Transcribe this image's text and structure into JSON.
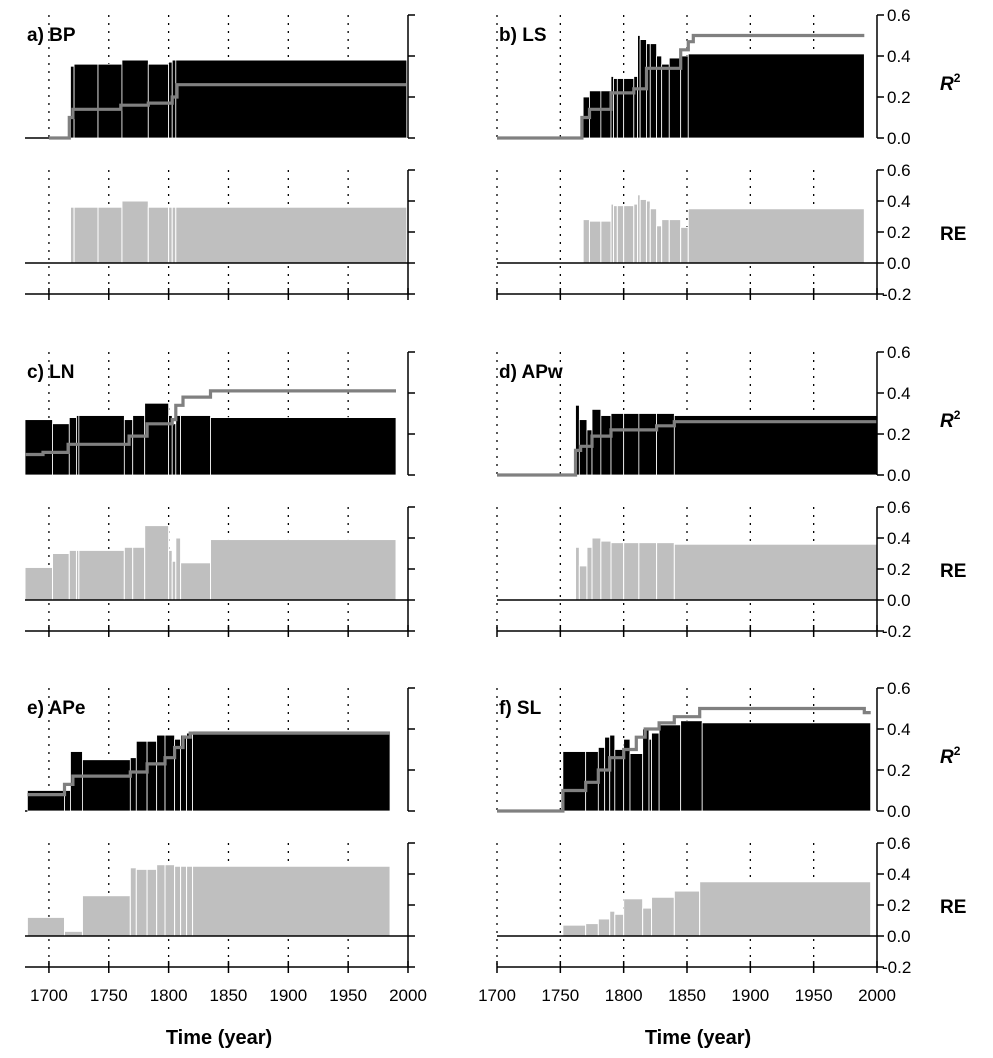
{
  "colors": {
    "r2_bar": "#000000",
    "r2_line": "#808080",
    "re_bar": "#bfbfbf",
    "axis": "#000000"
  },
  "chart_data": {
    "type": "bar",
    "x_ticks": [
      1700,
      1750,
      1800,
      1850,
      1900,
      1950,
      2000
    ],
    "xlim": [
      1680,
      2000
    ],
    "r2_ylim": [
      0.0,
      0.6
    ],
    "re_ylim": [
      -0.2,
      0.6
    ],
    "r2_ticks": [
      "0.6",
      "0.4",
      "0.2",
      "0.0"
    ],
    "re_ticks": [
      "0.6",
      "0.4",
      "0.2",
      "0.0",
      "-0.2"
    ],
    "r2_label": "R",
    "r2_label_sup": "2",
    "re_label": "RE",
    "xlabel": "Time (year)",
    "grid": "dotted vertical lines at 50-year intervals",
    "panels": [
      {
        "label": "a) BP",
        "r2_bars": [
          [
            1700,
            1718,
            0
          ],
          [
            1718,
            1721,
            0.35
          ],
          [
            1721,
            1741,
            0.36
          ],
          [
            1741,
            1761,
            0.36
          ],
          [
            1761,
            1783,
            0.38
          ],
          [
            1783,
            1800,
            0.36
          ],
          [
            1800,
            1803,
            0.37
          ],
          [
            1803,
            1806,
            0.38
          ],
          [
            1806,
            1999,
            0.38
          ]
        ],
        "r2_line": [
          [
            1700,
            0
          ],
          [
            1717,
            0
          ],
          [
            1717,
            0.1
          ],
          [
            1720,
            0.1
          ],
          [
            1720,
            0.14
          ],
          [
            1760,
            0.14
          ],
          [
            1760,
            0.16
          ],
          [
            1783,
            0.16
          ],
          [
            1783,
            0.17
          ],
          [
            1803,
            0.17
          ],
          [
            1803,
            0.2
          ],
          [
            1807,
            0.2
          ],
          [
            1807,
            0.26
          ],
          [
            1999,
            0.26
          ]
        ],
        "re_bars": [
          [
            1700,
            1718,
            0
          ],
          [
            1718,
            1721,
            0.36
          ],
          [
            1721,
            1741,
            0.36
          ],
          [
            1741,
            1761,
            0.36
          ],
          [
            1761,
            1783,
            0.4
          ],
          [
            1783,
            1800,
            0.36
          ],
          [
            1800,
            1803,
            0.36
          ],
          [
            1803,
            1806,
            0.36
          ],
          [
            1806,
            1999,
            0.36
          ]
        ]
      },
      {
        "label": "b) LS",
        "r2_bars": [
          [
            1700,
            1768,
            0
          ],
          [
            1768,
            1773,
            0.2
          ],
          [
            1773,
            1782,
            0.23
          ],
          [
            1782,
            1790,
            0.23
          ],
          [
            1790,
            1792,
            0.3
          ],
          [
            1792,
            1795,
            0.29
          ],
          [
            1795,
            1800,
            0.29
          ],
          [
            1800,
            1808,
            0.29
          ],
          [
            1808,
            1811,
            0.3
          ],
          [
            1811,
            1813,
            0.5
          ],
          [
            1813,
            1818,
            0.48
          ],
          [
            1818,
            1821,
            0.46
          ],
          [
            1821,
            1826,
            0.46
          ],
          [
            1826,
            1830,
            0.4
          ],
          [
            1830,
            1836,
            0.36
          ],
          [
            1836,
            1845,
            0.39
          ],
          [
            1845,
            1851,
            0.4
          ],
          [
            1851,
            1990,
            0.41
          ]
        ],
        "r2_line": [
          [
            1700,
            0
          ],
          [
            1767,
            0
          ],
          [
            1767,
            0.1
          ],
          [
            1773,
            0.1
          ],
          [
            1773,
            0.14
          ],
          [
            1790,
            0.14
          ],
          [
            1790,
            0.22
          ],
          [
            1808,
            0.22
          ],
          [
            1808,
            0.24
          ],
          [
            1818,
            0.24
          ],
          [
            1818,
            0.34
          ],
          [
            1845,
            0.34
          ],
          [
            1845,
            0.43
          ],
          [
            1851,
            0.43
          ],
          [
            1851,
            0.47
          ],
          [
            1855,
            0.47
          ],
          [
            1855,
            0.5
          ],
          [
            1990,
            0.5
          ]
        ],
        "re_bars": [
          [
            1700,
            1768,
            0
          ],
          [
            1768,
            1773,
            0.28
          ],
          [
            1773,
            1782,
            0.27
          ],
          [
            1782,
            1790,
            0.27
          ],
          [
            1790,
            1792,
            0.38
          ],
          [
            1792,
            1795,
            0.37
          ],
          [
            1795,
            1800,
            0.37
          ],
          [
            1800,
            1808,
            0.37
          ],
          [
            1808,
            1811,
            0.38
          ],
          [
            1811,
            1813,
            0.44
          ],
          [
            1813,
            1818,
            0.41
          ],
          [
            1818,
            1821,
            0.4
          ],
          [
            1821,
            1826,
            0.35
          ],
          [
            1826,
            1830,
            0.24
          ],
          [
            1830,
            1836,
            0.28
          ],
          [
            1836,
            1845,
            0.28
          ],
          [
            1845,
            1851,
            0.23
          ],
          [
            1851,
            1990,
            0.35
          ]
        ]
      },
      {
        "label": "c) LN",
        "r2_bars": [
          [
            1680,
            1703,
            0.27
          ],
          [
            1703,
            1717,
            0.25
          ],
          [
            1717,
            1723,
            0.28
          ],
          [
            1723,
            1725,
            0.29
          ],
          [
            1725,
            1763,
            0.29
          ],
          [
            1763,
            1770,
            0.27
          ],
          [
            1770,
            1780,
            0.29
          ],
          [
            1780,
            1800,
            0.35
          ],
          [
            1800,
            1803,
            0.29
          ],
          [
            1803,
            1806,
            0.25
          ],
          [
            1806,
            1810,
            0.29
          ],
          [
            1810,
            1835,
            0.29
          ],
          [
            1835,
            1990,
            0.28
          ]
        ],
        "r2_line": [
          [
            1680,
            0.1
          ],
          [
            1695,
            0.1
          ],
          [
            1695,
            0.11
          ],
          [
            1716,
            0.11
          ],
          [
            1716,
            0.15
          ],
          [
            1767,
            0.15
          ],
          [
            1767,
            0.19
          ],
          [
            1782,
            0.19
          ],
          [
            1782,
            0.25
          ],
          [
            1803,
            0.25
          ],
          [
            1803,
            0.27
          ],
          [
            1806,
            0.27
          ],
          [
            1806,
            0.34
          ],
          [
            1812,
            0.34
          ],
          [
            1812,
            0.38
          ],
          [
            1835,
            0.38
          ],
          [
            1835,
            0.41
          ],
          [
            1990,
            0.41
          ]
        ],
        "re_bars": [
          [
            1680,
            1703,
            0.21
          ],
          [
            1703,
            1717,
            0.3
          ],
          [
            1717,
            1723,
            0.32
          ],
          [
            1723,
            1725,
            0.32
          ],
          [
            1725,
            1763,
            0.32
          ],
          [
            1763,
            1770,
            0.34
          ],
          [
            1770,
            1780,
            0.34
          ],
          [
            1780,
            1800,
            0.48
          ],
          [
            1800,
            1803,
            0.32
          ],
          [
            1803,
            1806,
            0.25
          ],
          [
            1806,
            1810,
            0.4
          ],
          [
            1810,
            1835,
            0.24
          ],
          [
            1835,
            1990,
            0.39
          ]
        ]
      },
      {
        "label": "d) APw",
        "r2_bars": [
          [
            1700,
            1762,
            0
          ],
          [
            1762,
            1765,
            0.34
          ],
          [
            1765,
            1771,
            0.27
          ],
          [
            1771,
            1775,
            0.22
          ],
          [
            1775,
            1782,
            0.32
          ],
          [
            1782,
            1790,
            0.29
          ],
          [
            1790,
            1800,
            0.3
          ],
          [
            1800,
            1812,
            0.3
          ],
          [
            1812,
            1826,
            0.3
          ],
          [
            1826,
            1840,
            0.3
          ],
          [
            1840,
            2000,
            0.29
          ]
        ],
        "r2_line": [
          [
            1700,
            0
          ],
          [
            1762,
            0
          ],
          [
            1762,
            0.12
          ],
          [
            1766,
            0.12
          ],
          [
            1766,
            0.14
          ],
          [
            1775,
            0.14
          ],
          [
            1775,
            0.19
          ],
          [
            1790,
            0.19
          ],
          [
            1790,
            0.22
          ],
          [
            1826,
            0.22
          ],
          [
            1826,
            0.24
          ],
          [
            1840,
            0.24
          ],
          [
            1840,
            0.26
          ],
          [
            2000,
            0.26
          ]
        ],
        "re_bars": [
          [
            1700,
            1762,
            0
          ],
          [
            1762,
            1765,
            0.34
          ],
          [
            1765,
            1771,
            0.22
          ],
          [
            1771,
            1775,
            0.34
          ],
          [
            1775,
            1782,
            0.4
          ],
          [
            1782,
            1790,
            0.38
          ],
          [
            1790,
            1800,
            0.37
          ],
          [
            1800,
            1812,
            0.37
          ],
          [
            1812,
            1826,
            0.37
          ],
          [
            1826,
            1840,
            0.37
          ],
          [
            1840,
            2000,
            0.36
          ]
        ]
      },
      {
        "label": "e) APe",
        "r2_bars": [
          [
            1682,
            1713,
            0.1
          ],
          [
            1713,
            1718,
            0.1
          ],
          [
            1718,
            1728,
            0.29
          ],
          [
            1728,
            1768,
            0.25
          ],
          [
            1768,
            1773,
            0.26
          ],
          [
            1773,
            1782,
            0.34
          ],
          [
            1782,
            1790,
            0.34
          ],
          [
            1790,
            1797,
            0.37
          ],
          [
            1797,
            1805,
            0.37
          ],
          [
            1805,
            1810,
            0.35
          ],
          [
            1810,
            1815,
            0.37
          ],
          [
            1815,
            1820,
            0.38
          ],
          [
            1820,
            1985,
            0.39
          ]
        ],
        "r2_line": [
          [
            1682,
            0.08
          ],
          [
            1713,
            0.08
          ],
          [
            1713,
            0.13
          ],
          [
            1720,
            0.13
          ],
          [
            1720,
            0.17
          ],
          [
            1768,
            0.17
          ],
          [
            1768,
            0.19
          ],
          [
            1782,
            0.19
          ],
          [
            1782,
            0.23
          ],
          [
            1797,
            0.23
          ],
          [
            1797,
            0.26
          ],
          [
            1805,
            0.26
          ],
          [
            1805,
            0.31
          ],
          [
            1812,
            0.31
          ],
          [
            1812,
            0.36
          ],
          [
            1818,
            0.36
          ],
          [
            1818,
            0.38
          ],
          [
            1985,
            0.38
          ]
        ],
        "re_bars": [
          [
            1682,
            1713,
            0.12
          ],
          [
            1713,
            1728,
            0.03
          ],
          [
            1728,
            1768,
            0.26
          ],
          [
            1768,
            1773,
            0.44
          ],
          [
            1773,
            1782,
            0.43
          ],
          [
            1782,
            1790,
            0.43
          ],
          [
            1790,
            1797,
            0.46
          ],
          [
            1797,
            1805,
            0.46
          ],
          [
            1805,
            1810,
            0.45
          ],
          [
            1810,
            1815,
            0.45
          ],
          [
            1815,
            1820,
            0.45
          ],
          [
            1820,
            1985,
            0.45
          ]
        ]
      },
      {
        "label": "f) SL",
        "r2_bars": [
          [
            1700,
            1752,
            0
          ],
          [
            1752,
            1770,
            0.29
          ],
          [
            1770,
            1780,
            0.29
          ],
          [
            1780,
            1785,
            0.31
          ],
          [
            1785,
            1789,
            0.36
          ],
          [
            1789,
            1793,
            0.37
          ],
          [
            1793,
            1800,
            0.3
          ],
          [
            1800,
            1805,
            0.35
          ],
          [
            1805,
            1815,
            0.28
          ],
          [
            1815,
            1820,
            0.4
          ],
          [
            1820,
            1822,
            0.35
          ],
          [
            1822,
            1828,
            0.38
          ],
          [
            1828,
            1845,
            0.42
          ],
          [
            1845,
            1862,
            0.44
          ],
          [
            1862,
            1995,
            0.43
          ]
        ],
        "r2_line": [
          [
            1700,
            0
          ],
          [
            1752,
            0
          ],
          [
            1752,
            0.1
          ],
          [
            1770,
            0.1
          ],
          [
            1770,
            0.14
          ],
          [
            1780,
            0.14
          ],
          [
            1780,
            0.2
          ],
          [
            1789,
            0.2
          ],
          [
            1789,
            0.26
          ],
          [
            1800,
            0.26
          ],
          [
            1800,
            0.3
          ],
          [
            1810,
            0.3
          ],
          [
            1810,
            0.36
          ],
          [
            1817,
            0.36
          ],
          [
            1817,
            0.4
          ],
          [
            1828,
            0.4
          ],
          [
            1828,
            0.43
          ],
          [
            1840,
            0.43
          ],
          [
            1840,
            0.46
          ],
          [
            1860,
            0.46
          ],
          [
            1860,
            0.5
          ],
          [
            1990,
            0.5
          ],
          [
            1990,
            0.48
          ],
          [
            1995,
            0.48
          ]
        ],
        "re_bars": [
          [
            1700,
            1752,
            0
          ],
          [
            1752,
            1770,
            0.07
          ],
          [
            1770,
            1780,
            0.08
          ],
          [
            1780,
            1789,
            0.11
          ],
          [
            1789,
            1793,
            0.16
          ],
          [
            1793,
            1800,
            0.14
          ],
          [
            1800,
            1815,
            0.24
          ],
          [
            1815,
            1822,
            0.18
          ],
          [
            1822,
            1840,
            0.25
          ],
          [
            1840,
            1860,
            0.29
          ],
          [
            1860,
            1995,
            0.35
          ]
        ]
      }
    ]
  }
}
